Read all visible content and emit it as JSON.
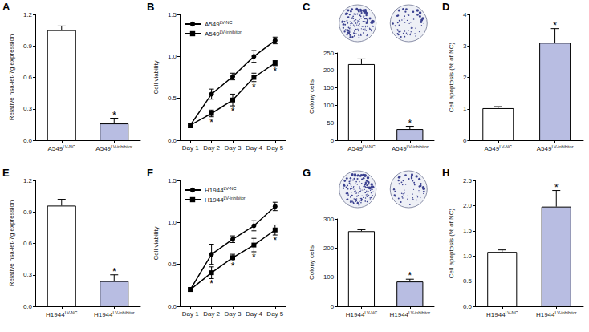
{
  "chart_data": [
    {
      "panel": "A",
      "type": "bar",
      "ylabel": "Relative hsa-let-7g expression",
      "categories": [
        "A549LV-NC",
        "A549LV-inhibitor"
      ],
      "values": [
        1.05,
        0.16
      ],
      "errors": [
        0.04,
        0.05
      ],
      "significance": [
        null,
        "*"
      ],
      "colors": [
        "#ffffff",
        "#b8bde2"
      ],
      "ylim": [
        0,
        1.2
      ],
      "yticks": [
        {
          "value": 0,
          "label": "0.0"
        },
        0.3,
        0.6,
        0.9,
        1.2
      ],
      "grid": false
    },
    {
      "panel": "B",
      "type": "line",
      "ylabel": "Cell viability",
      "categories": [
        "Day 1",
        "Day 2",
        "Day 3",
        "Day 4",
        "Day 5"
      ],
      "series": [
        {
          "name": "A549LV-NC",
          "color": "#000000",
          "marker": "circle",
          "values": [
            0.18,
            0.55,
            0.76,
            1.0,
            1.19
          ],
          "errors": [
            0.02,
            0.06,
            0.04,
            0.07,
            0.04
          ]
        },
        {
          "name": "A549LV-inhibitor",
          "color": "#000000",
          "marker": "square",
          "values": [
            0.18,
            0.32,
            0.48,
            0.75,
            0.92
          ],
          "errors": [
            0.02,
            0.04,
            0.07,
            0.05,
            0.03
          ],
          "significance": [
            null,
            "*",
            "*",
            "*",
            "*"
          ]
        }
      ],
      "ylim": [
        0,
        1.5
      ],
      "yticks": [
        {
          "value": 0,
          "label": "0.0"
        },
        0.5,
        {
          "value": 1,
          "label": "1.0"
        },
        1.5
      ],
      "legend": "top-left",
      "grid": false
    },
    {
      "panel": "C",
      "type": "bar",
      "ylabel": "Colony cells",
      "categories": [
        "A549LV-NC",
        "A549LV-inhibitor"
      ],
      "values": [
        218,
        32
      ],
      "errors": [
        15,
        8
      ],
      "significance": [
        null,
        "*"
      ],
      "colors": [
        "#ffffff",
        "#b8bde2"
      ],
      "ylim": [
        0,
        250
      ],
      "yticks": [
        0,
        50,
        100,
        150,
        200,
        250
      ],
      "grid": false
    },
    {
      "panel": "D",
      "type": "bar",
      "ylabel": "Cell apoptosis (% of NC)",
      "categories": [
        "A549LV-NC",
        "A549LV-inhibitor"
      ],
      "values": [
        1.02,
        3.1
      ],
      "errors": [
        0.05,
        0.45
      ],
      "significance": [
        null,
        "*"
      ],
      "colors": [
        "#ffffff",
        "#b8bde2"
      ],
      "ylim": [
        0,
        4
      ],
      "yticks": [
        0,
        1,
        2,
        3,
        4
      ],
      "grid": false
    },
    {
      "panel": "E",
      "type": "bar",
      "ylabel": "Relative hsa-let-7g expression",
      "categories": [
        "H1944LV-NC",
        "H1944LV-inhibitor"
      ],
      "values": [
        0.96,
        0.24
      ],
      "errors": [
        0.06,
        0.06
      ],
      "significance": [
        null,
        "*"
      ],
      "colors": [
        "#ffffff",
        "#b8bde2"
      ],
      "ylim": [
        0,
        1.2
      ],
      "yticks": [
        {
          "value": 0,
          "label": "0.0"
        },
        0.3,
        0.6,
        0.9,
        1.2
      ],
      "grid": false
    },
    {
      "panel": "F",
      "type": "line",
      "ylabel": "Cell viability",
      "categories": [
        "Day 1",
        "Day 2",
        "Day 3",
        "Day 4",
        "Day 5"
      ],
      "series": [
        {
          "name": "H1944LV-NC",
          "color": "#000000",
          "marker": "circle",
          "values": [
            0.2,
            0.62,
            0.8,
            0.96,
            1.19
          ],
          "errors": [
            0.02,
            0.12,
            0.04,
            0.06,
            0.05
          ]
        },
        {
          "name": "H1944LV-inhibitor",
          "color": "#000000",
          "marker": "square",
          "values": [
            0.2,
            0.4,
            0.58,
            0.73,
            0.91
          ],
          "errors": [
            0.02,
            0.07,
            0.04,
            0.08,
            0.06
          ],
          "significance": [
            null,
            "*",
            "*",
            "*",
            "*"
          ]
        }
      ],
      "ylim": [
        0,
        1.5
      ],
      "yticks": [
        {
          "value": 0,
          "label": "0.0"
        },
        0.5,
        {
          "value": 1,
          "label": "1.0"
        },
        1.5
      ],
      "legend": "top-left",
      "grid": false
    },
    {
      "panel": "G",
      "type": "bar",
      "ylabel": "Colony cells",
      "categories": [
        "H1944LV-NC",
        "H1944LV-inhibitor"
      ],
      "values": [
        258,
        85
      ],
      "errors": [
        5,
        8
      ],
      "significance": [
        null,
        "*"
      ],
      "colors": [
        "#ffffff",
        "#b8bde2"
      ],
      "ylim": [
        0,
        300
      ],
      "yticks": [
        0,
        100,
        200,
        300
      ],
      "grid": false
    },
    {
      "panel": "H",
      "type": "bar",
      "ylabel": "Cell apoptosis (% of NC)",
      "categories": [
        "H1944LV-NC",
        "H1944LV-inhibitor"
      ],
      "values": [
        1.08,
        1.98
      ],
      "errors": [
        0.04,
        0.32
      ],
      "significance": [
        null,
        "*"
      ],
      "colors": [
        "#ffffff",
        "#b8bde2"
      ],
      "ylim": [
        0,
        2.5
      ],
      "yticks": [
        {
          "value": 0,
          "label": "0.0"
        },
        0.5,
        {
          "value": 1,
          "label": "1.0"
        },
        1.5,
        {
          "value": 2,
          "label": "2.0"
        },
        2.5
      ],
      "grid": false
    }
  ]
}
